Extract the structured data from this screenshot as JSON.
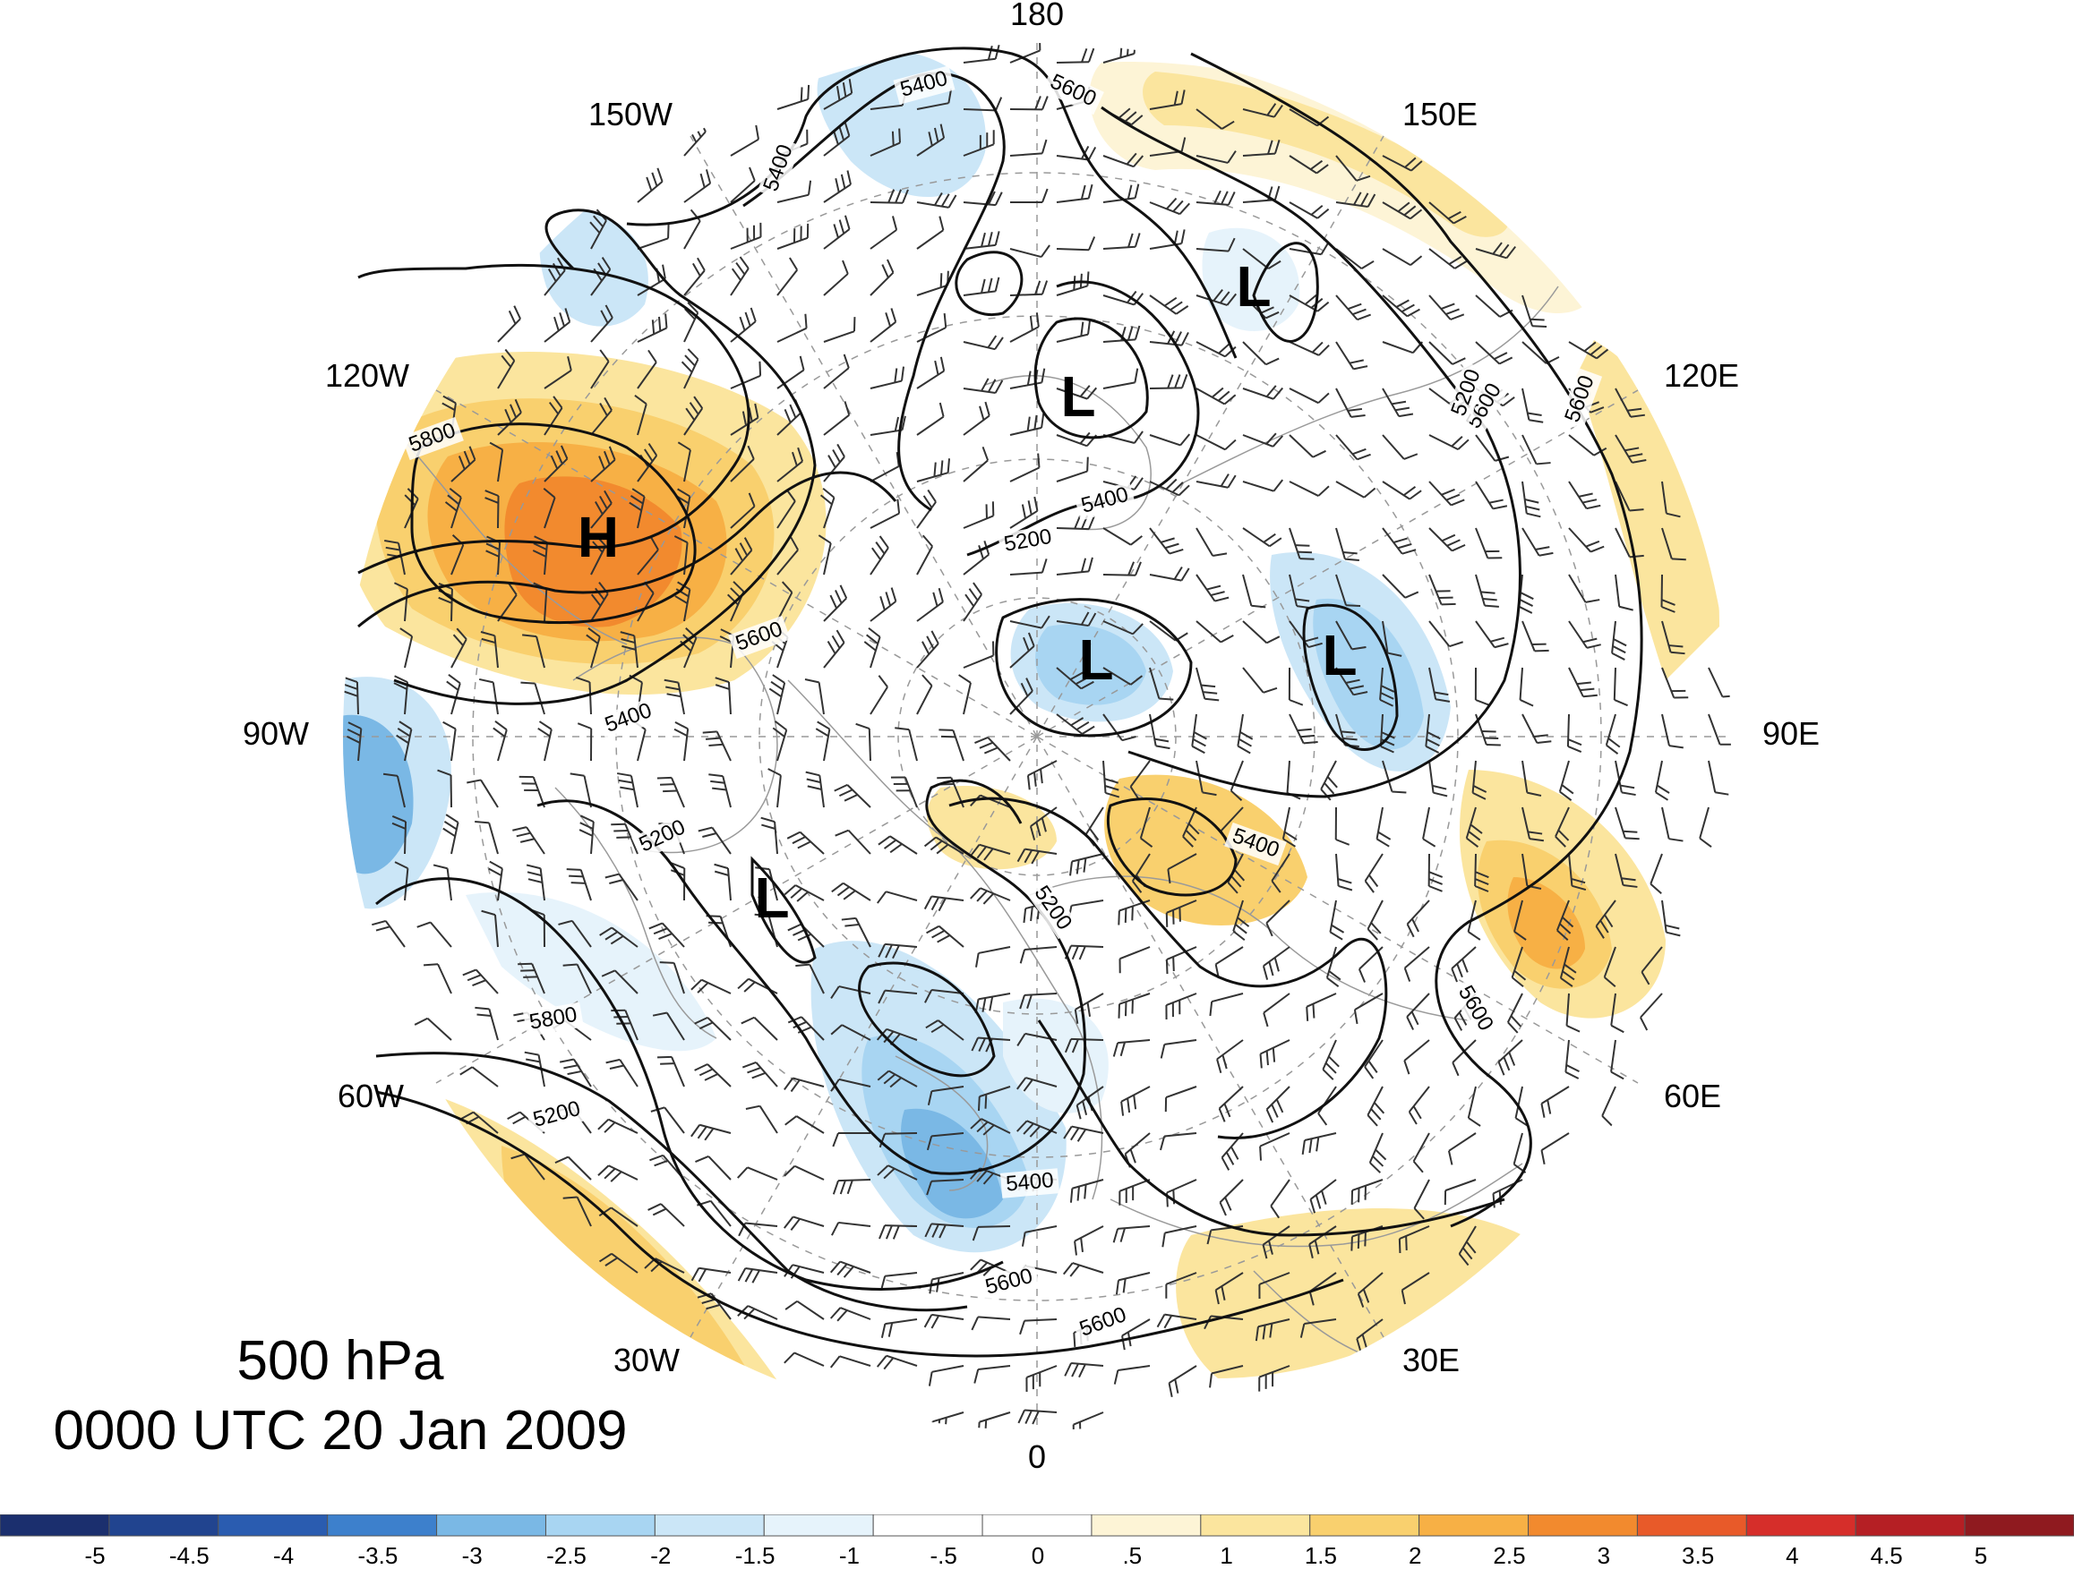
{
  "title": {
    "level": "500 hPa",
    "time": "0000 UTC 20 Jan 2009"
  },
  "longitude_labels": [
    "180",
    "150E",
    "120E",
    "90E",
    "60E",
    "30E",
    "0",
    "30W",
    "60W",
    "90W",
    "120W",
    "150W"
  ],
  "pressure_centers": [
    {
      "label": "H",
      "lon": -108,
      "lat": 47
    },
    {
      "label": "L",
      "lon": -175,
      "lat": 78
    },
    {
      "label": "L",
      "lon": 157,
      "lat": 66
    },
    {
      "label": "L",
      "lon": 140,
      "lat": 80
    },
    {
      "label": "L",
      "lon": 100,
      "lat": 69
    },
    {
      "label": "L",
      "lon": -60,
      "lat": 74
    }
  ],
  "contour_labels": [
    "5400",
    "5600",
    "5400",
    "5800",
    "5600",
    "5400",
    "5200",
    "5200",
    "5200",
    "5400",
    "5400",
    "5600",
    "5600",
    "5200",
    "5600",
    "5800",
    "5200",
    "5400",
    "5600",
    "5600"
  ],
  "colorbar": {
    "colors": [
      "#1b2f6e",
      "#21448f",
      "#2a5cb0",
      "#3d80cc",
      "#7ab8e5",
      "#a8d5f2",
      "#cbe6f7",
      "#e6f3fb",
      "#ffffff",
      "#ffffff",
      "#fdf4d6",
      "#fbe59e",
      "#f9d06e",
      "#f7b045",
      "#f28a2e",
      "#e85a29",
      "#d62e2a",
      "#b51f24",
      "#8f1a1f"
    ],
    "ticks": [
      "-5",
      "-4.5",
      "-4",
      "-3.5",
      "-3",
      "-2.5",
      "-2",
      "-1.5",
      "-1",
      "-.5",
      "0",
      ".5",
      "1",
      "1.5",
      "2",
      "2.5",
      "3",
      "3.5",
      "4",
      "4.5",
      "5"
    ]
  }
}
